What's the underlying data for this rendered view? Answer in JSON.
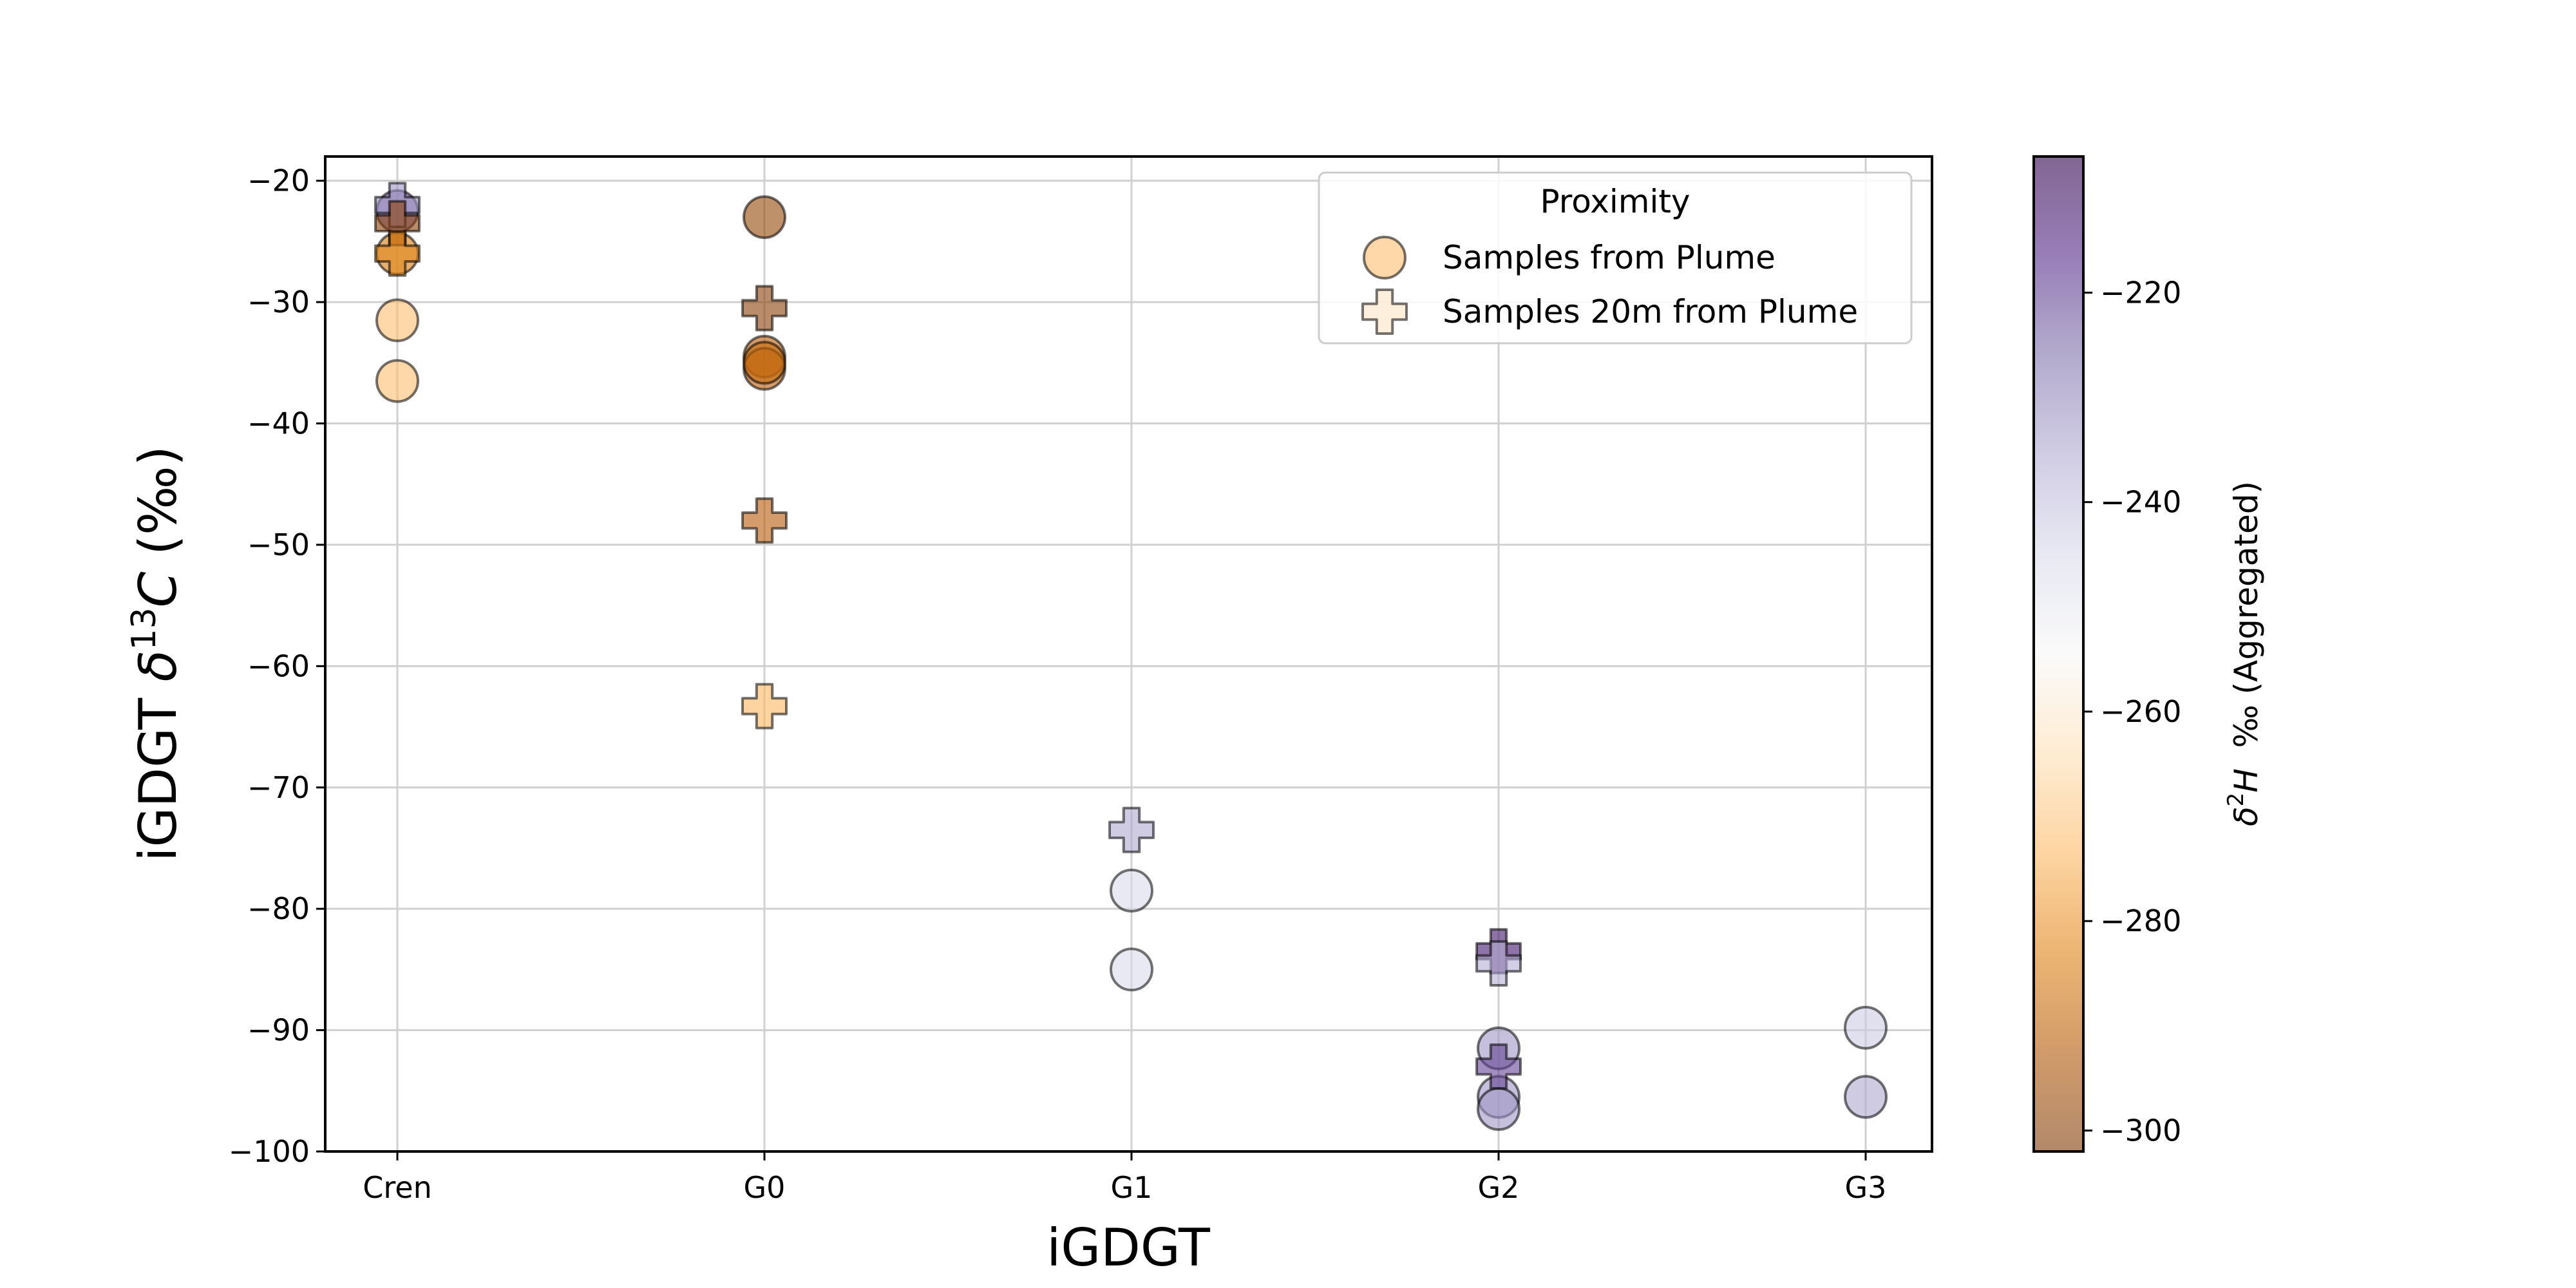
{
  "chart_data": {
    "type": "scatter",
    "xlabel": "iGDGT",
    "ylabel": "iGDGT δ13C (‰)",
    "ylabel_parts": {
      "prefix": "iGDGT ",
      "delta": "δ",
      "sup": "13",
      "var": "C",
      "suffix": " (‰)"
    },
    "categories": [
      "Cren",
      "G0",
      "G1",
      "G2",
      "G3"
    ],
    "ylim": [
      -100,
      -18
    ],
    "yticks": [
      -20,
      -30,
      -40,
      -50,
      -60,
      -70,
      -80,
      -90,
      -100
    ],
    "y_tick_labels": [
      "−20",
      "−30",
      "−40",
      "−50",
      "−60",
      "−70",
      "−80",
      "−90",
      "−100"
    ],
    "grid": true,
    "legend": {
      "title": "Proximity",
      "placement": "top-right",
      "entries": [
        {
          "label": "Samples from Plume",
          "marker": "circle"
        },
        {
          "label": "Samples 20m from Plume",
          "marker": "plus"
        }
      ]
    },
    "colorbar": {
      "label": "δ2H ‰ (Aggregated)",
      "label_parts": {
        "delta": "δ",
        "sup": "2",
        "var": "H",
        "suffix": "  ‰ (Aggregated)"
      },
      "range": [
        -302,
        -207
      ],
      "ticks": [
        -220,
        -240,
        -260,
        -280,
        -300
      ],
      "tick_labels": [
        "−220",
        "−240",
        "−260",
        "−280",
        "−300"
      ],
      "colormap": "PuOr",
      "alpha": 0.6,
      "stops": [
        "#7f3b08",
        "#b35806",
        "#e08214",
        "#fdb863",
        "#fee0b6",
        "#f7f7f7",
        "#d8daeb",
        "#b2abd2",
        "#8073ac",
        "#542788",
        "#2d004b"
      ]
    },
    "series": [
      {
        "name": "Samples from Plume",
        "marker": "circle",
        "points": [
          {
            "x": "Cren",
            "y": -26.0,
            "c": -285
          },
          {
            "x": "Cren",
            "y": -31.5,
            "c": -272
          },
          {
            "x": "Cren",
            "y": -36.5,
            "c": -272
          },
          {
            "x": "Cren",
            "y": -22.5,
            "c": -222
          },
          {
            "x": "G0",
            "y": -23.0,
            "c": -298
          },
          {
            "x": "G0",
            "y": -34.5,
            "c": -292
          },
          {
            "x": "G0",
            "y": -35.5,
            "c": -292
          },
          {
            "x": "G0",
            "y": -35.0,
            "c": -288
          },
          {
            "x": "G1",
            "y": -78.5,
            "c": -245
          },
          {
            "x": "G1",
            "y": -85.0,
            "c": -245
          },
          {
            "x": "G2",
            "y": -91.5,
            "c": -232
          },
          {
            "x": "G2",
            "y": -95.5,
            "c": -232
          },
          {
            "x": "G2",
            "y": -96.5,
            "c": -232
          },
          {
            "x": "G3",
            "y": -89.8,
            "c": -242
          },
          {
            "x": "G3",
            "y": -95.5,
            "c": -235
          }
        ]
      },
      {
        "name": "Samples 20m from Plume",
        "marker": "plus",
        "points": [
          {
            "x": "Cren",
            "y": -22.0,
            "c": -232
          },
          {
            "x": "Cren",
            "y": -23.5,
            "c": -300
          },
          {
            "x": "Cren",
            "y": -26.0,
            "c": -282
          },
          {
            "x": "G0",
            "y": -30.5,
            "c": -300
          },
          {
            "x": "G0",
            "y": -48.0,
            "c": -292
          },
          {
            "x": "G0",
            "y": -63.3,
            "c": -274
          },
          {
            "x": "G1",
            "y": -73.5,
            "c": -235
          },
          {
            "x": "G2",
            "y": -83.5,
            "c": -212
          },
          {
            "x": "G2",
            "y": -84.5,
            "c": -236
          },
          {
            "x": "G2",
            "y": -93.0,
            "c": -220
          }
        ]
      }
    ]
  }
}
